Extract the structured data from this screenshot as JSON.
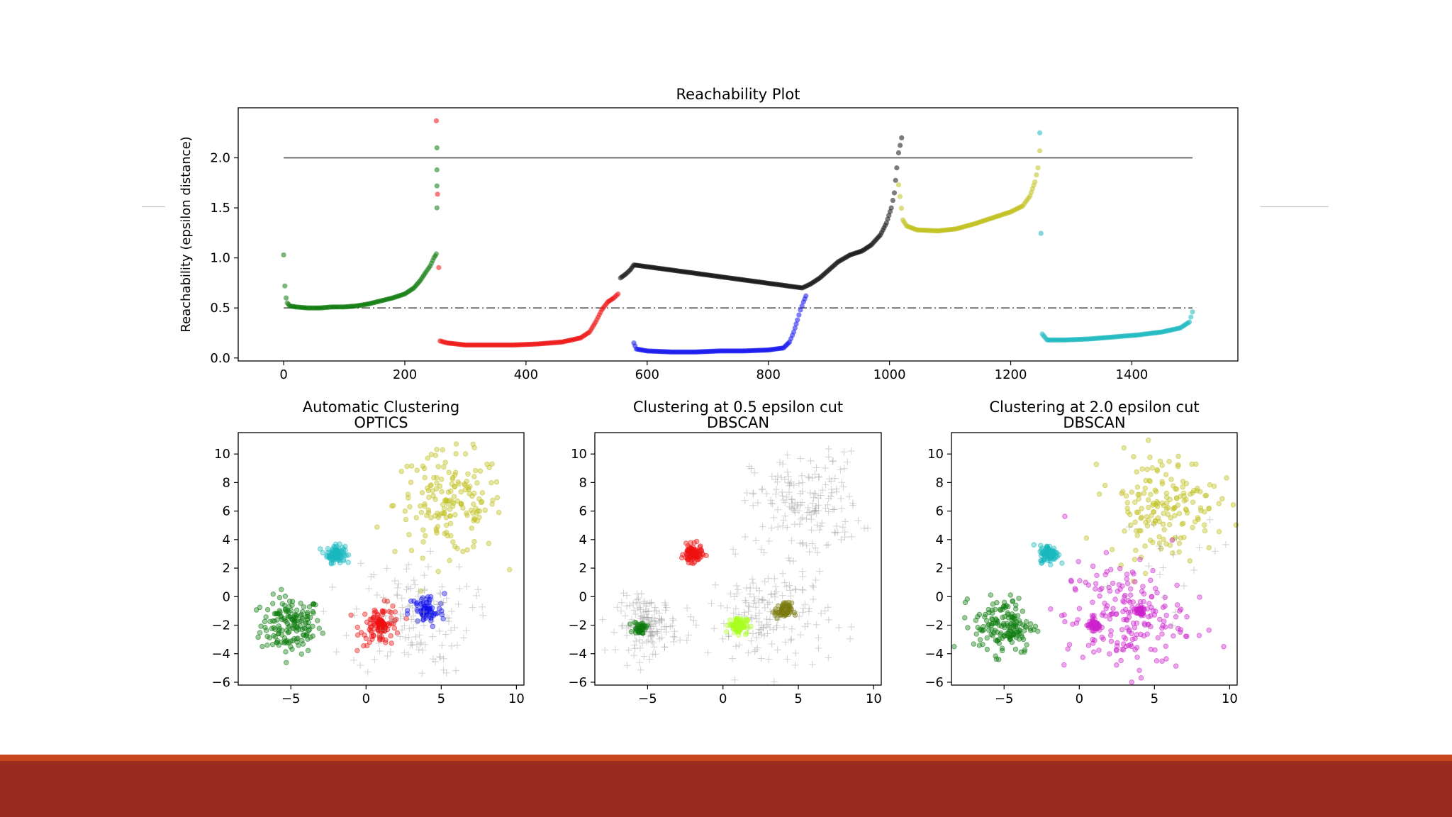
{
  "colors": {
    "footer_band": "#9a2c1f",
    "footer_stripe": "#c8461e",
    "green": "#0b7a0b",
    "red": "#ee1111",
    "blue": "#1111ee",
    "black": "#111111",
    "olive": "#bfbf1a",
    "cyan": "#1ab8bf",
    "magenta": "#cc22cc",
    "lime": "#aaff22",
    "dark_olive": "#7a7a10",
    "noise": "#999999"
  },
  "chart_data": [
    {
      "id": "reachability",
      "type": "scatter",
      "title": "Reachability Plot",
      "xlabel": "",
      "ylabel": "Reachability (epsilon distance)",
      "xlim": [
        -75,
        1575
      ],
      "ylim": [
        -0.03,
        2.5
      ],
      "xticks": [
        0,
        200,
        400,
        600,
        800,
        1000,
        1200,
        1400
      ],
      "yticks": [
        0.0,
        0.5,
        1.0,
        1.5,
        2.0
      ],
      "reference_lines": [
        {
          "y": 2.0,
          "x": [
            0,
            1500
          ],
          "style": "solid",
          "color": "#555555"
        },
        {
          "y": 0.5,
          "x": [
            0,
            1500
          ],
          "style": "dashdot",
          "color": "#555555"
        }
      ],
      "series": [
        {
          "color": "green",
          "points": [
            [
              0,
              1.03
            ],
            [
              2,
              0.72
            ],
            [
              4,
              0.6
            ],
            [
              6,
              0.55
            ],
            [
              10,
              0.52
            ],
            [
              20,
              0.51
            ],
            [
              40,
              0.5
            ],
            [
              60,
              0.5
            ],
            [
              80,
              0.51
            ],
            [
              100,
              0.51
            ],
            [
              120,
              0.52
            ],
            [
              140,
              0.54
            ],
            [
              160,
              0.57
            ],
            [
              180,
              0.6
            ],
            [
              200,
              0.64
            ],
            [
              215,
              0.7
            ],
            [
              225,
              0.77
            ],
            [
              235,
              0.86
            ],
            [
              242,
              0.92
            ],
            [
              248,
              1.0
            ],
            [
              252,
              1.04
            ],
            [
              253,
              1.5
            ],
            [
              253,
              1.72
            ],
            [
              253,
              1.88
            ],
            [
              253,
              2.1
            ]
          ]
        },
        {
          "color": "red",
          "points": [
            [
              252,
              2.37
            ],
            [
              258,
              0.17
            ],
            [
              270,
              0.15
            ],
            [
              300,
              0.13
            ],
            [
              340,
              0.13
            ],
            [
              380,
              0.13
            ],
            [
              420,
              0.14
            ],
            [
              460,
              0.16
            ],
            [
              490,
              0.2
            ],
            [
              505,
              0.26
            ],
            [
              515,
              0.36
            ],
            [
              525,
              0.48
            ],
            [
              535,
              0.56
            ],
            [
              545,
              0.6
            ],
            [
              552,
              0.64
            ]
          ]
        },
        {
          "color": "black",
          "points": [
            [
              556,
              0.8
            ],
            [
              565,
              0.84
            ],
            [
              572,
              0.88
            ],
            [
              578,
              0.93
            ],
            [
              856,
              0.7
            ],
            [
              870,
              0.74
            ],
            [
              885,
              0.8
            ],
            [
              900,
              0.88
            ],
            [
              915,
              0.96
            ],
            [
              935,
              1.03
            ],
            [
              955,
              1.07
            ],
            [
              970,
              1.13
            ],
            [
              985,
              1.23
            ],
            [
              995,
              1.35
            ],
            [
              1003,
              1.5
            ],
            [
              1008,
              1.65
            ],
            [
              1012,
              1.9
            ],
            [
              1015,
              2.05
            ],
            [
              1020,
              2.2
            ]
          ]
        },
        {
          "color": "blue",
          "points": [
            [
              578,
              0.15
            ],
            [
              582,
              0.09
            ],
            [
              600,
              0.07
            ],
            [
              640,
              0.06
            ],
            [
              680,
              0.06
            ],
            [
              720,
              0.07
            ],
            [
              760,
              0.07
            ],
            [
              800,
              0.08
            ],
            [
              825,
              0.1
            ],
            [
              835,
              0.16
            ],
            [
              842,
              0.26
            ],
            [
              848,
              0.38
            ],
            [
              853,
              0.48
            ],
            [
              858,
              0.56
            ],
            [
              862,
              0.62
            ]
          ]
        },
        {
          "color": "olive",
          "points": [
            [
              1015,
              1.73
            ],
            [
              1022,
              1.38
            ],
            [
              1028,
              1.32
            ],
            [
              1045,
              1.28
            ],
            [
              1080,
              1.27
            ],
            [
              1110,
              1.29
            ],
            [
              1140,
              1.34
            ],
            [
              1170,
              1.4
            ],
            [
              1200,
              1.46
            ],
            [
              1220,
              1.52
            ],
            [
              1232,
              1.62
            ],
            [
              1240,
              1.76
            ],
            [
              1245,
              1.9
            ],
            [
              1248,
              2.07
            ]
          ]
        },
        {
          "color": "cyan",
          "points": [
            [
              1248,
              2.25
            ],
            [
              1252,
              0.24
            ],
            [
              1260,
              0.18
            ],
            [
              1290,
              0.18
            ],
            [
              1330,
              0.19
            ],
            [
              1370,
              0.21
            ],
            [
              1410,
              0.23
            ],
            [
              1450,
              0.26
            ],
            [
              1480,
              0.3
            ],
            [
              1495,
              0.36
            ],
            [
              1500,
              0.46
            ]
          ]
        }
      ]
    },
    {
      "id": "optics",
      "type": "scatter",
      "title": "Automatic Clustering\nOPTICS",
      "xlim": [
        -8.5,
        10.5
      ],
      "ylim": [
        -6.2,
        11.5
      ],
      "xticks": [
        -5,
        0,
        5,
        10
      ],
      "yticks": [
        -6,
        -4,
        -2,
        0,
        2,
        4,
        6,
        8,
        10
      ],
      "clusters": [
        {
          "cx": -5,
          "cy": -2,
          "sx": 1,
          "sy": 1,
          "n": 160,
          "color": "green",
          "marker": "o"
        },
        {
          "cx": -2,
          "cy": 3,
          "sx": 0.3,
          "sy": 0.3,
          "n": 100,
          "color": "cyan",
          "marker": "o"
        },
        {
          "cx": 5.5,
          "cy": 6.5,
          "sx": 1.8,
          "sy": 1.8,
          "n": 170,
          "color": "olive",
          "marker": "o"
        },
        {
          "cx": 1,
          "cy": -2,
          "sx": 0.7,
          "sy": 0.7,
          "n": 80,
          "color": "red",
          "marker": "o"
        },
        {
          "cx": 1,
          "cy": -2,
          "sx": 0.18,
          "sy": 0.18,
          "n": 60,
          "color": "red",
          "marker": "o"
        },
        {
          "cx": 4,
          "cy": -1,
          "sx": 0.6,
          "sy": 0.6,
          "n": 60,
          "color": "blue",
          "marker": "o"
        },
        {
          "cx": 4,
          "cy": -1,
          "sx": 0.18,
          "sy": 0.18,
          "n": 40,
          "color": "blue",
          "marker": "o"
        },
        {
          "cx": 3,
          "cy": -1.5,
          "sx": 2,
          "sy": 2,
          "n": 130,
          "color": "noise",
          "marker": "+"
        }
      ]
    },
    {
      "id": "dbscan05",
      "type": "scatter",
      "title": "Clustering at 0.5 epsilon cut\nDBSCAN",
      "xlim": [
        -8.5,
        10.5
      ],
      "ylim": [
        -6.2,
        11.5
      ],
      "xticks": [
        -5,
        0,
        5,
        10
      ],
      "yticks": [
        -6,
        -4,
        -2,
        0,
        2,
        4,
        6,
        8,
        10
      ],
      "clusters": [
        {
          "cx": 5.5,
          "cy": 6.5,
          "sx": 1.8,
          "sy": 1.8,
          "n": 170,
          "color": "noise",
          "marker": "+"
        },
        {
          "cx": -5,
          "cy": -2,
          "sx": 1,
          "sy": 1,
          "n": 150,
          "color": "noise",
          "marker": "+"
        },
        {
          "cx": 3,
          "cy": -1.5,
          "sx": 2,
          "sy": 2,
          "n": 170,
          "color": "noise",
          "marker": "+"
        },
        {
          "cx": -2,
          "cy": 3,
          "sx": 0.3,
          "sy": 0.3,
          "n": 100,
          "color": "red",
          "marker": "o"
        },
        {
          "cx": -5.5,
          "cy": -2.2,
          "sx": 0.22,
          "sy": 0.22,
          "n": 40,
          "color": "green",
          "marker": "o"
        },
        {
          "cx": 1,
          "cy": -2,
          "sx": 0.3,
          "sy": 0.3,
          "n": 80,
          "color": "lime",
          "marker": "o"
        },
        {
          "cx": 4,
          "cy": -1,
          "sx": 0.28,
          "sy": 0.28,
          "n": 60,
          "color": "dark_olive",
          "marker": "o"
        }
      ]
    },
    {
      "id": "dbscan20",
      "type": "scatter",
      "title": "Clustering at 2.0 epsilon cut\nDBSCAN",
      "xlim": [
        -8.5,
        10.5
      ],
      "ylim": [
        -6.2,
        11.5
      ],
      "xticks": [
        -5,
        0,
        5,
        10
      ],
      "yticks": [
        -6,
        -4,
        -2,
        0,
        2,
        4,
        6,
        8,
        10
      ],
      "clusters": [
        {
          "cx": -5,
          "cy": -2,
          "sx": 1,
          "sy": 1,
          "n": 160,
          "color": "green",
          "marker": "o"
        },
        {
          "cx": -2,
          "cy": 3,
          "sx": 0.3,
          "sy": 0.3,
          "n": 100,
          "color": "cyan",
          "marker": "o"
        },
        {
          "cx": 5.5,
          "cy": 6.5,
          "sx": 1.8,
          "sy": 1.8,
          "n": 170,
          "color": "olive",
          "marker": "o"
        },
        {
          "cx": 3,
          "cy": -1.5,
          "sx": 2,
          "sy": 2,
          "n": 200,
          "color": "magenta",
          "marker": "o"
        },
        {
          "cx": 1,
          "cy": -2,
          "sx": 0.18,
          "sy": 0.18,
          "n": 60,
          "color": "magenta",
          "marker": "o"
        },
        {
          "cx": 4,
          "cy": -1,
          "sx": 0.18,
          "sy": 0.18,
          "n": 40,
          "color": "magenta",
          "marker": "o"
        },
        {
          "cx": 6,
          "cy": 0.5,
          "sx": 2.5,
          "sy": 2.5,
          "n": 20,
          "color": "noise",
          "marker": "+"
        }
      ]
    }
  ]
}
